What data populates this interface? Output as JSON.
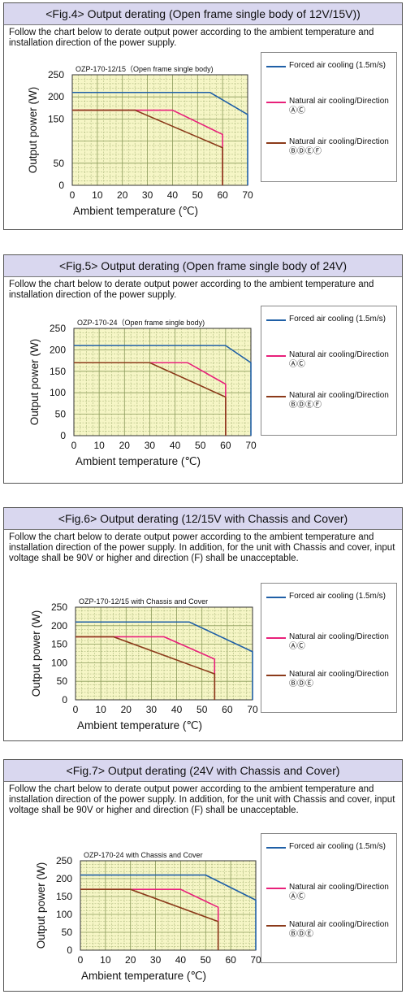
{
  "figures": [
    {
      "heading": "<Fig.4> Output derating (Open frame single body of 12V/15V))",
      "description": "Follow the chart below to derate output power according to the ambient temperature and installation direction of the power supply.",
      "legend": [
        {
          "label": "Forced air cooling (1.5m/s)",
          "color": "#1f5fa6"
        },
        {
          "label": "Natural air cooling/Direction ⒶⒸ",
          "color": "#e8207a"
        },
        {
          "label": "Natural air cooling/Direction ⒷⒹⒺⒻ",
          "color": "#8b3a1a"
        }
      ]
    },
    {
      "heading": "<Fig.5> Output derating (Open frame single body of 24V)",
      "description": "Follow the chart below to derate output power according to the ambient temperature and installation direction of the power supply.",
      "legend": [
        {
          "label": "Forced air cooling (1.5m/s)",
          "color": "#1f5fa6"
        },
        {
          "label": "Natural air cooling/Direction ⒶⒸ",
          "color": "#e8207a"
        },
        {
          "label": "Natural air cooling/Direction ⒷⒹⒺⒻ",
          "color": "#8b3a1a"
        }
      ]
    },
    {
      "heading": "<Fig.6> Output derating (12/15V with Chassis and Cover)",
      "description": "Follow the chart below to derate output power according to the ambient temperature and installation direction of the power supply. In addition, for the unit with Chassis and cover, input voltage shall be 90V or higher and direction (F) shall be unacceptable.",
      "legend": [
        {
          "label": "Forced air cooling (1.5m/s)",
          "color": "#1f5fa6"
        },
        {
          "label": "Natural air cooling/Direction ⒶⒸ",
          "color": "#e8207a"
        },
        {
          "label": "Natural air cooling/Direction ⒷⒹⒺ",
          "color": "#8b3a1a"
        }
      ]
    },
    {
      "heading": "<Fig.7> Output derating (24V with Chassis and Cover)",
      "description": "Follow the chart below to derate output power according to the ambient temperature and installation direction of the power supply. In addition, for the unit with Chassis and cover, input voltage shall be 90V or higher and direction (F) shall be unacceptable.",
      "legend": [
        {
          "label": "Forced air cooling (1.5m/s)",
          "color": "#1f5fa6"
        },
        {
          "label": "Natural air cooling/Direction ⒶⒸ",
          "color": "#e8207a"
        },
        {
          "label": "Natural air cooling/Direction ⒷⒹⒺ",
          "color": "#8b3a1a"
        }
      ]
    }
  ],
  "chart_data": [
    {
      "type": "line",
      "title": "OZP-170-12/15（Open frame single body)",
      "xlabel": "Ambient temperature (℃)",
      "ylabel": "Output power (W)",
      "xlim": [
        0,
        70
      ],
      "ylim": [
        0,
        250
      ],
      "xticks": [
        0,
        10,
        20,
        30,
        40,
        50,
        60,
        70
      ],
      "yticks": [
        0,
        50,
        150,
        200,
        250
      ],
      "grid": true,
      "legend_position": "right",
      "series": [
        {
          "name": "Forced air cooling (1.5m/s)",
          "points": [
            [
              0,
              210
            ],
            [
              55,
              210
            ],
            [
              70,
              160
            ],
            [
              70,
              0
            ]
          ],
          "color": "#1f5fa6"
        },
        {
          "name": "Natural air cooling/Direction ⒶⒸ",
          "points": [
            [
              0,
              170
            ],
            [
              40,
              170
            ],
            [
              60,
              115
            ],
            [
              60,
              0
            ]
          ],
          "color": "#e8207a"
        },
        {
          "name": "Natural air cooling/Direction ⒷⒹⒺⒻ",
          "points": [
            [
              0,
              170
            ],
            [
              25,
              170
            ],
            [
              60,
              85
            ],
            [
              60,
              0
            ]
          ],
          "color": "#8b3a1a"
        }
      ]
    },
    {
      "type": "line",
      "title": "OZP-170-24（Open frame single body)",
      "xlabel": "Ambient temperature (℃)",
      "ylabel": "Output power (W)",
      "xlim": [
        0,
        70
      ],
      "ylim": [
        0,
        250
      ],
      "xticks": [
        0,
        10,
        20,
        30,
        40,
        50,
        60,
        70
      ],
      "yticks": [
        0,
        50,
        100,
        150,
        200,
        250
      ],
      "grid": true,
      "legend_position": "right",
      "series": [
        {
          "name": "Forced air cooling (1.5m/s)",
          "points": [
            [
              0,
              210
            ],
            [
              60,
              210
            ],
            [
              70,
              170
            ],
            [
              70,
              0
            ]
          ],
          "color": "#1f5fa6"
        },
        {
          "name": "Natural air cooling/Direction ⒶⒸ",
          "points": [
            [
              0,
              170
            ],
            [
              45,
              170
            ],
            [
              60,
              120
            ],
            [
              60,
              0
            ]
          ],
          "color": "#e8207a"
        },
        {
          "name": "Natural air cooling/Direction ⒷⒹⒺⒻ",
          "points": [
            [
              0,
              170
            ],
            [
              30,
              170
            ],
            [
              60,
              90
            ],
            [
              60,
              0
            ]
          ],
          "color": "#8b3a1a"
        }
      ]
    },
    {
      "type": "line",
      "title": "OZP-170-12/15 with Chassis and Cover",
      "xlabel": "Ambient temperature (℃)",
      "ylabel": "Output power (W)",
      "xlim": [
        0,
        70
      ],
      "ylim": [
        0,
        250
      ],
      "xticks": [
        0,
        10,
        20,
        30,
        40,
        50,
        60,
        70
      ],
      "yticks": [
        0,
        50,
        100,
        150,
        200,
        250
      ],
      "grid": true,
      "legend_position": "right",
      "series": [
        {
          "name": "Forced air cooling (1.5m/s)",
          "points": [
            [
              0,
              210
            ],
            [
              45,
              210
            ],
            [
              70,
              130
            ],
            [
              70,
              0
            ]
          ],
          "color": "#1f5fa6"
        },
        {
          "name": "Natural air cooling/Direction ⒶⒸ",
          "points": [
            [
              0,
              170
            ],
            [
              35,
              170
            ],
            [
              55,
              110
            ],
            [
              55,
              0
            ]
          ],
          "color": "#e8207a"
        },
        {
          "name": "Natural air cooling/Direction ⒷⒹⒺ",
          "points": [
            [
              0,
              170
            ],
            [
              15,
              170
            ],
            [
              55,
              70
            ],
            [
              55,
              0
            ]
          ],
          "color": "#8b3a1a"
        }
      ]
    },
    {
      "type": "line",
      "title": "OZP-170-24 with Chassis and Cover",
      "xlabel": "Ambient temperature (℃)",
      "ylabel": "Output power (W)",
      "xlim": [
        0,
        70
      ],
      "ylim": [
        0,
        250
      ],
      "xticks": [
        0,
        10,
        20,
        30,
        40,
        50,
        60,
        70
      ],
      "yticks": [
        0,
        50,
        100,
        150,
        200,
        250
      ],
      "grid": true,
      "legend_position": "right",
      "series": [
        {
          "name": "Forced air cooling (1.5m/s)",
          "points": [
            [
              0,
              210
            ],
            [
              50,
              210
            ],
            [
              70,
              140
            ],
            [
              70,
              0
            ]
          ],
          "color": "#1f5fa6"
        },
        {
          "name": "Natural air cooling/Direction ⒶⒸ",
          "points": [
            [
              0,
              170
            ],
            [
              40,
              170
            ],
            [
              55,
              120
            ],
            [
              55,
              0
            ]
          ],
          "color": "#e8207a"
        },
        {
          "name": "Natural air cooling/Direction ⒷⒹⒺ",
          "points": [
            [
              0,
              170
            ],
            [
              20,
              170
            ],
            [
              55,
              80
            ],
            [
              55,
              0
            ]
          ],
          "color": "#8b3a1a"
        }
      ]
    }
  ]
}
